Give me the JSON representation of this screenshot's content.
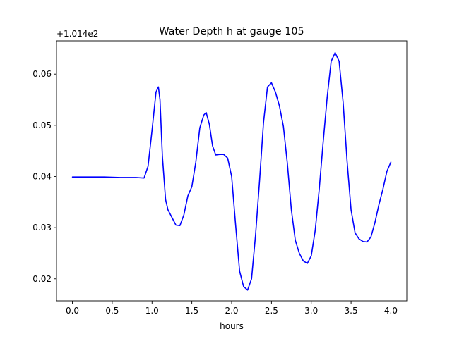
{
  "chart_data": {
    "type": "line",
    "title": "Water Depth h at gauge 105",
    "xlabel": "hours",
    "ylabel": "",
    "offset_label": "+1.014e2",
    "xlim": [
      -0.2,
      4.2
    ],
    "ylim": [
      0.0157,
      0.0665
    ],
    "x_ticks": [
      0.0,
      0.5,
      1.0,
      1.5,
      2.0,
      2.5,
      3.0,
      3.5,
      4.0
    ],
    "x_tick_labels": [
      "0.0",
      "0.5",
      "1.0",
      "1.5",
      "2.0",
      "2.5",
      "3.0",
      "3.5",
      "4.0"
    ],
    "y_ticks": [
      0.02,
      0.03,
      0.04,
      0.05,
      0.06
    ],
    "y_tick_labels": [
      "0.02",
      "0.03",
      "0.04",
      "0.05",
      "0.06"
    ],
    "grid": false,
    "series": [
      {
        "color": "#0000ff",
        "x": [
          0.0,
          0.2,
          0.4,
          0.6,
          0.8,
          0.9,
          0.95,
          1.0,
          1.05,
          1.08,
          1.1,
          1.13,
          1.17,
          1.2,
          1.25,
          1.3,
          1.35,
          1.4,
          1.45,
          1.5,
          1.55,
          1.6,
          1.65,
          1.68,
          1.72,
          1.76,
          1.8,
          1.85,
          1.9,
          1.95,
          2.0,
          2.05,
          2.1,
          2.15,
          2.2,
          2.25,
          2.3,
          2.35,
          2.4,
          2.45,
          2.5,
          2.55,
          2.6,
          2.65,
          2.7,
          2.75,
          2.8,
          2.85,
          2.9,
          2.95,
          3.0,
          3.05,
          3.1,
          3.15,
          3.2,
          3.25,
          3.3,
          3.35,
          3.4,
          3.45,
          3.5,
          3.55,
          3.6,
          3.65,
          3.7,
          3.75,
          3.8,
          3.85,
          3.9,
          3.95,
          4.0
        ],
        "y": [
          0.0399,
          0.0399,
          0.0399,
          0.0398,
          0.0398,
          0.0397,
          0.042,
          0.049,
          0.0565,
          0.0575,
          0.055,
          0.044,
          0.0355,
          0.0335,
          0.032,
          0.0305,
          0.0304,
          0.0325,
          0.0362,
          0.038,
          0.0428,
          0.0495,
          0.052,
          0.0525,
          0.0502,
          0.046,
          0.0442,
          0.0443,
          0.0443,
          0.0436,
          0.04,
          0.0305,
          0.0215,
          0.0185,
          0.0178,
          0.02,
          0.0285,
          0.039,
          0.0505,
          0.0575,
          0.0583,
          0.0565,
          0.0538,
          0.0498,
          0.0425,
          0.0335,
          0.0275,
          0.025,
          0.0235,
          0.023,
          0.0245,
          0.0295,
          0.0375,
          0.0468,
          0.0555,
          0.0625,
          0.0642,
          0.0625,
          0.0545,
          0.043,
          0.0335,
          0.029,
          0.0278,
          0.0273,
          0.0272,
          0.0282,
          0.031,
          0.0345,
          0.0375,
          0.041,
          0.0428
        ]
      }
    ]
  }
}
